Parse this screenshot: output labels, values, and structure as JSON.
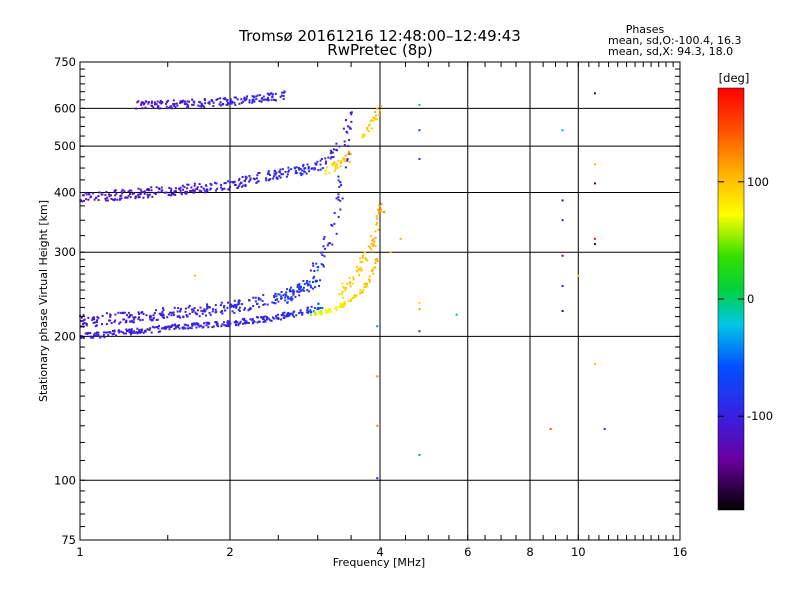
{
  "chart_data": {
    "type": "scatter",
    "title": "Tromsø 20161216 12:48:00–12:49:43",
    "subtitle": "RwPretec (8p)",
    "xlabel": "Frequency [MHz]",
    "ylabel": "Stationary phase Virtual Height [km]",
    "x_scale": "log",
    "y_scale": "log",
    "xlim": [
      1,
      16
    ],
    "ylim": [
      75,
      750
    ],
    "x_ticks": [
      1,
      2,
      4,
      6,
      8,
      10,
      16
    ],
    "x_ticklabels": [
      "1",
      "2",
      "4",
      "6",
      "8",
      "10",
      "16"
    ],
    "y_ticks": [
      75,
      100,
      200,
      300,
      400,
      500,
      600,
      750
    ],
    "y_ticklabels": [
      "75",
      "100",
      "200",
      "300",
      "400",
      "500",
      "600",
      "750"
    ],
    "grid": true,
    "phase_info": {
      "heading": "Phases",
      "line1": "mean, sd,O:-100.4, 16.3",
      "line2": "mean, sd,X:  94.3, 18.0"
    },
    "colorbar": {
      "label": "[deg]",
      "range": [
        -180,
        180
      ],
      "ticks": [
        100,
        0,
        -100
      ],
      "ticklabels": [
        "100",
        "0",
        "-100"
      ],
      "colormap": "rainbow"
    },
    "traces": [
      {
        "x": [
          1.0,
          1.3,
          1.6,
          2.0,
          2.4,
          2.8,
          3.05
        ],
        "y": [
          200,
          205,
          210,
          213,
          218,
          225,
          232
        ],
        "phase": [
          -105,
          -102,
          -100,
          -98,
          -95,
          -85,
          -60
        ],
        "spread": 6
      },
      {
        "x": [
          1.0,
          1.3,
          1.6,
          2.0,
          2.4,
          2.7,
          3.0
        ],
        "y": [
          215,
          220,
          225,
          230,
          238,
          248,
          262
        ],
        "phase": [
          -110,
          -105,
          -100,
          -95,
          -90,
          -80,
          -70
        ],
        "spread": 12
      },
      {
        "x": [
          2.6,
          2.9,
          3.1,
          3.25,
          3.35,
          3.45,
          3.52
        ],
        "y": [
          240,
          260,
          300,
          350,
          420,
          520,
          610
        ],
        "phase": [
          -80,
          -85,
          -95,
          -100,
          -100,
          -105,
          -110
        ],
        "spread": 15
      },
      {
        "x": [
          1.0,
          1.3,
          1.6,
          2.0,
          2.3,
          2.6,
          2.9,
          3.1,
          3.3
        ],
        "y": [
          390,
          398,
          405,
          415,
          430,
          440,
          450,
          460,
          500
        ],
        "phase": [
          -115,
          -112,
          -110,
          -105,
          -100,
          -95,
          -90,
          -95,
          -105
        ],
        "spread": 10
      },
      {
        "x": [
          1.3,
          1.6,
          2.0,
          2.3,
          2.6
        ],
        "y": [
          610,
          612,
          620,
          630,
          640
        ],
        "phase": [
          -112,
          -110,
          -100,
          -95,
          -90
        ],
        "spread": 8
      },
      {
        "x": [
          2.9,
          3.1,
          3.3,
          3.5,
          3.7,
          3.85,
          3.95
        ],
        "y": [
          222,
          225,
          230,
          238,
          250,
          270,
          290
        ],
        "phase": [
          60,
          70,
          80,
          90,
          95,
          100,
          105
        ],
        "spread": 4
      },
      {
        "x": [
          3.3,
          3.5,
          3.7,
          3.85,
          3.95,
          4.05
        ],
        "y": [
          240,
          260,
          285,
          310,
          340,
          380
        ],
        "phase": [
          90,
          95,
          100,
          105,
          110,
          115
        ],
        "spread": 12
      },
      {
        "x": [
          3.1,
          3.3,
          3.5
        ],
        "y": [
          440,
          460,
          480
        ],
        "phase": [
          85,
          95,
          105
        ],
        "spread": 10
      },
      {
        "x": [
          3.7,
          3.85,
          4.0
        ],
        "y": [
          520,
          560,
          600
        ],
        "phase": [
          90,
          95,
          110
        ],
        "spread": 6
      }
    ],
    "scatter_points": [
      {
        "x": 4.8,
        "y": 610,
        "phase": -30
      },
      {
        "x": 4.8,
        "y": 540,
        "phase": -80
      },
      {
        "x": 4.8,
        "y": 470,
        "phase": -85
      },
      {
        "x": 4.8,
        "y": 235,
        "phase": 90
      },
      {
        "x": 4.8,
        "y": 228,
        "phase": 120
      },
      {
        "x": 4.8,
        "y": 205,
        "phase": -110
      },
      {
        "x": 4.8,
        "y": 113,
        "phase": -40
      },
      {
        "x": 3.95,
        "y": 210,
        "phase": -40
      },
      {
        "x": 3.95,
        "y": 165,
        "phase": 130
      },
      {
        "x": 3.95,
        "y": 130,
        "phase": 130
      },
      {
        "x": 3.95,
        "y": 101,
        "phase": -115
      },
      {
        "x": 5.7,
        "y": 222,
        "phase": -30
      },
      {
        "x": 9.3,
        "y": 540,
        "phase": -30
      },
      {
        "x": 9.3,
        "y": 385,
        "phase": -150
      },
      {
        "x": 9.3,
        "y": 350,
        "phase": -115
      },
      {
        "x": 9.3,
        "y": 295,
        "phase": -135
      },
      {
        "x": 9.3,
        "y": 255,
        "phase": -115
      },
      {
        "x": 9.3,
        "y": 226,
        "phase": -150
      },
      {
        "x": 10.0,
        "y": 268,
        "phase": 100
      },
      {
        "x": 8.8,
        "y": 128,
        "phase": 140
      },
      {
        "x": 10.8,
        "y": 645,
        "phase": -160
      },
      {
        "x": 10.8,
        "y": 458,
        "phase": 100
      },
      {
        "x": 10.8,
        "y": 418,
        "phase": -150
      },
      {
        "x": 10.8,
        "y": 320,
        "phase": 170
      },
      {
        "x": 10.8,
        "y": 312,
        "phase": -160
      },
      {
        "x": 10.8,
        "y": 175,
        "phase": 100
      },
      {
        "x": 11.3,
        "y": 128,
        "phase": -80
      },
      {
        "x": 1.7,
        "y": 268,
        "phase": 100
      },
      {
        "x": 2.5,
        "y": 245,
        "phase": -60
      },
      {
        "x": 3.0,
        "y": 275,
        "phase": -40
      },
      {
        "x": 4.2,
        "y": 300,
        "phase": 100
      },
      {
        "x": 4.4,
        "y": 320,
        "phase": 110
      }
    ]
  }
}
